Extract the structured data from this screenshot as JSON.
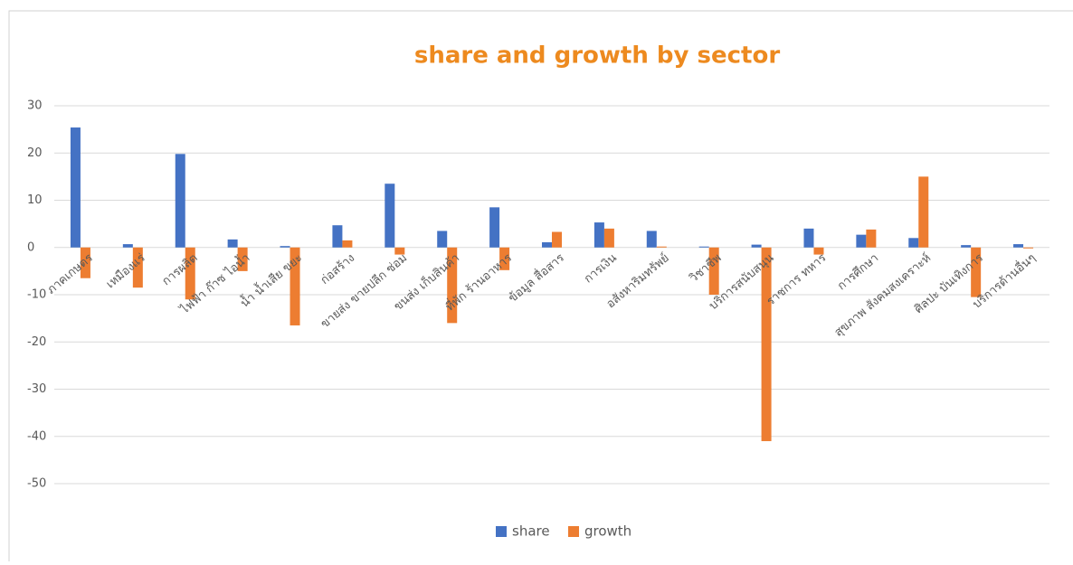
{
  "chart_data": {
    "type": "bar",
    "title": "share and growth by sector",
    "categories": [
      "ภาคเกษตร",
      "เหมืองแร่",
      "การผลิต",
      "ไฟฟ้า ก๊าซ ไอน้ำ",
      "น้ำ น้ำเสีย ขยะ",
      "ก่อสร้าง",
      "ขายส่ง ขายปลีก ซ่อม",
      "ขนส่ง เก็บสินค้า",
      "ที่พัก ร้านอาหาร",
      "ข้อมูล สื่อสาร",
      "การเงิน",
      "อสังหาริมทรัพย์",
      "วิชาชีพ",
      "บริการสนับสนุน",
      "ราชการ ทหาร",
      "การศึกษา",
      "สุขภาพ สังคมสงเคราะห์",
      "ศิลปะ บันเทิงการ",
      "บริการด้านอื่นๆ"
    ],
    "series": [
      {
        "name": "share",
        "color": "#4472c4",
        "values": [
          25.4,
          0.7,
          19.8,
          1.7,
          0.3,
          4.7,
          13.5,
          3.5,
          8.5,
          1.1,
          5.3,
          3.5,
          0.2,
          0.6,
          4.0,
          2.7,
          2.0,
          0.5,
          0.7
        ]
      },
      {
        "name": "growth",
        "color": "#ed7d31",
        "values": [
          -6.5,
          -8.5,
          -11,
          -5,
          -16.5,
          1.5,
          -1.5,
          -16,
          -4.8,
          3.3,
          4.0,
          0.2,
          -10,
          -41,
          -1.5,
          3.8,
          15,
          -10.5,
          -0.2
        ]
      }
    ],
    "ylim": [
      -50,
      30
    ],
    "yticks": [
      -50,
      -40,
      -30,
      -20,
      -10,
      0,
      10,
      20,
      30
    ],
    "grid": true,
    "legend": "bottom"
  }
}
